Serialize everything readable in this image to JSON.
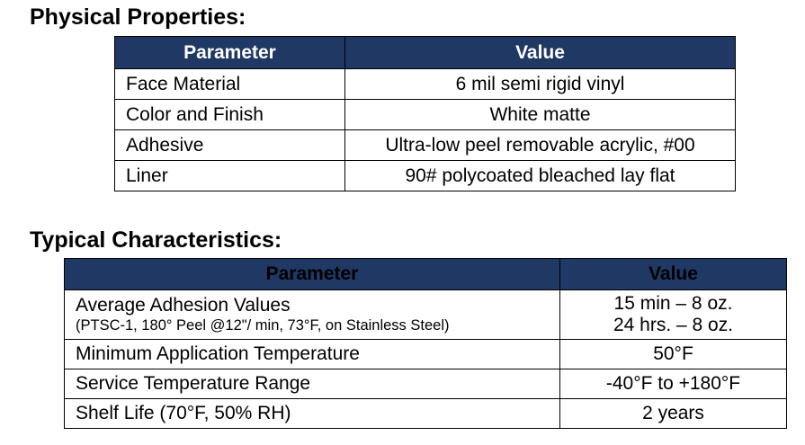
{
  "physical": {
    "title": "Physical Properties:",
    "headers": {
      "parameter": "Parameter",
      "value": "Value"
    },
    "rows": [
      {
        "parameter": "Face Material",
        "value": "6 mil semi rigid vinyl"
      },
      {
        "parameter": "Color and Finish",
        "value": "White matte"
      },
      {
        "parameter": "Adhesive",
        "value": "Ultra-low peel removable acrylic, #00"
      },
      {
        "parameter": "Liner",
        "value": "90# polycoated bleached lay flat"
      }
    ]
  },
  "typical": {
    "title": "Typical Characteristics:",
    "headers": {
      "parameter": "Parameter",
      "value": "Value"
    },
    "adhesion": {
      "parameter": "Average Adhesion Values",
      "note": "(PTSC-1, 180° Peel @12\"/ min, 73°F, on Stainless Steel)",
      "value_1": "15 min – 8 oz.",
      "value_2": "24 hrs. – 8 oz."
    },
    "rows": [
      {
        "parameter": "Minimum Application Temperature",
        "value": "50°F"
      },
      {
        "parameter": "Service Temperature Range",
        "value": "-40°F to +180°F"
      },
      {
        "parameter": "Shelf Life (70°F, 50% RH)",
        "value": "2 years"
      }
    ]
  },
  "colors": {
    "header_background": "#1f3864",
    "physical_header_text": "#ffffff",
    "typical_header_text": "#000000",
    "border": "#000000"
  }
}
